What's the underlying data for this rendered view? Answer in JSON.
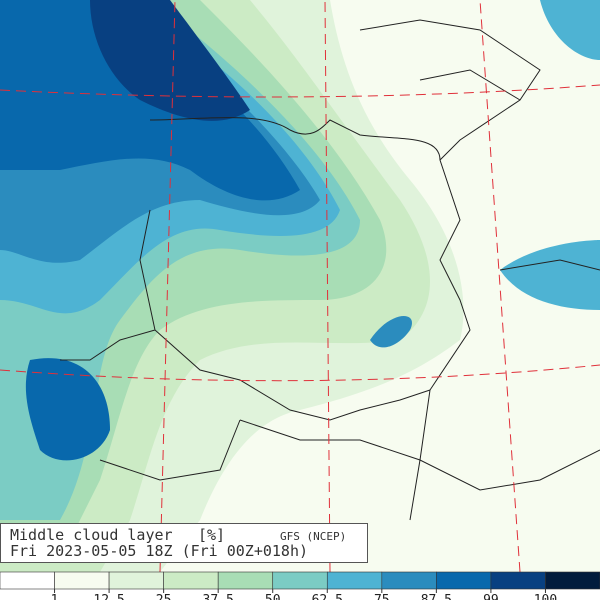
{
  "header": {
    "title": "Middle cloud layer",
    "unit": "[%]",
    "source": "GFS (NCEP)",
    "time": "Fri 2023-05-05 18Z (Fri 00Z+018h)"
  },
  "legend": {
    "levels": [
      1,
      12.5,
      25,
      37.5,
      50,
      62.5,
      75,
      87.5,
      99,
      100
    ],
    "colors": [
      "#ffffff",
      "#f7fcf0",
      "#e0f3db",
      "#ccebc5",
      "#a8ddb5",
      "#7bccc4",
      "#4eb3d3",
      "#2b8cbe",
      "#0868ac",
      "#084081",
      "#021c3d"
    ]
  }
}
